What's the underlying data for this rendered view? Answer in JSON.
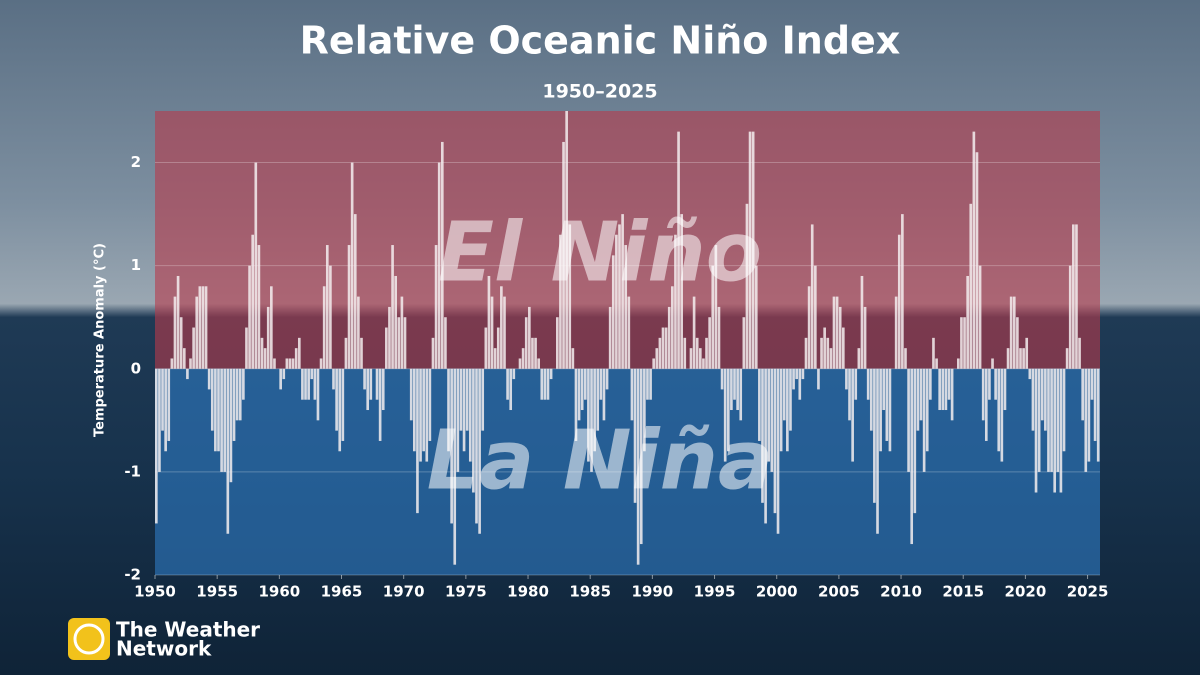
{
  "chart_data": {
    "type": "bar",
    "title": "Relative Oceanic Niño Index",
    "subtitle": "1950–2025",
    "y_label": "Temperature Anomaly (°C)",
    "annotations": [
      "El Niño",
      "La Niña"
    ],
    "color": "#f4eef0",
    "positive_region_color": "#b83a4b",
    "negative_region_color": "#2f7cc4",
    "grid": true,
    "xlim": [
      1950,
      2026
    ],
    "xticks": [
      1950,
      1955,
      1960,
      1965,
      1970,
      1975,
      1980,
      1985,
      1990,
      1995,
      2000,
      2005,
      2010,
      2015,
      2020,
      2025
    ],
    "ylim": [
      -2,
      2.5
    ],
    "yticks": [
      -2,
      -1,
      0,
      1,
      2
    ],
    "x": [
      1950,
      1950.25,
      1950.5,
      1950.75,
      1951,
      1951.25,
      1951.5,
      1951.75,
      1952,
      1952.25,
      1952.5,
      1952.75,
      1953,
      1953.25,
      1953.5,
      1953.75,
      1954,
      1954.25,
      1954.5,
      1954.75,
      1955,
      1955.25,
      1955.5,
      1955.75,
      1956,
      1956.25,
      1956.5,
      1956.75,
      1957,
      1957.25,
      1957.5,
      1957.75,
      1958,
      1958.25,
      1958.5,
      1958.75,
      1959,
      1959.25,
      1959.5,
      1959.75,
      1960,
      1960.25,
      1960.5,
      1960.75,
      1961,
      1961.25,
      1961.5,
      1961.75,
      1962,
      1962.25,
      1962.5,
      1962.75,
      1963,
      1963.25,
      1963.5,
      1963.75,
      1964,
      1964.25,
      1964.5,
      1964.75,
      1965,
      1965.25,
      1965.5,
      1965.75,
      1966,
      1966.25,
      1966.5,
      1966.75,
      1967,
      1967.25,
      1967.5,
      1967.75,
      1968,
      1968.25,
      1968.5,
      1968.75,
      1969,
      1969.25,
      1969.5,
      1969.75,
      1970,
      1970.25,
      1970.5,
      1970.75,
      1971,
      1971.25,
      1971.5,
      1971.75,
      1972,
      1972.25,
      1972.5,
      1972.75,
      1973,
      1973.25,
      1973.5,
      1973.75,
      1974,
      1974.25,
      1974.5,
      1974.75,
      1975,
      1975.25,
      1975.5,
      1975.75,
      1976,
      1976.25,
      1976.5,
      1976.75,
      1977,
      1977.25,
      1977.5,
      1977.75,
      1978,
      1978.25,
      1978.5,
      1978.75,
      1979,
      1979.25,
      1979.5,
      1979.75,
      1980,
      1980.25,
      1980.5,
      1980.75,
      1981,
      1981.25,
      1981.5,
      1981.75,
      1982,
      1982.25,
      1982.5,
      1982.75,
      1983,
      1983.25,
      1983.5,
      1983.75,
      1984,
      1984.25,
      1984.5,
      1984.75,
      1985,
      1985.25,
      1985.5,
      1985.75,
      1986,
      1986.25,
      1986.5,
      1986.75,
      1987,
      1987.25,
      1987.5,
      1987.75,
      1988,
      1988.25,
      1988.5,
      1988.75,
      1989,
      1989.25,
      1989.5,
      1989.75,
      1990,
      1990.25,
      1990.5,
      1990.75,
      1991,
      1991.25,
      1991.5,
      1991.75,
      1992,
      1992.25,
      1992.5,
      1992.75,
      1993,
      1993.25,
      1993.5,
      1993.75,
      1994,
      1994.25,
      1994.5,
      1994.75,
      1995,
      1995.25,
      1995.5,
      1995.75,
      1996,
      1996.25,
      1996.5,
      1996.75,
      1997,
      1997.25,
      1997.5,
      1997.75,
      1998,
      1998.25,
      1998.5,
      1998.75,
      1999,
      1999.25,
      1999.5,
      1999.75,
      2000,
      2000.25,
      2000.5,
      2000.75,
      2001,
      2001.25,
      2001.5,
      2001.75,
      2002,
      2002.25,
      2002.5,
      2002.75,
      2003,
      2003.25,
      2003.5,
      2003.75,
      2004,
      2004.25,
      2004.5,
      2004.75,
      2005,
      2005.25,
      2005.5,
      2005.75,
      2006,
      2006.25,
      2006.5,
      2006.75,
      2007,
      2007.25,
      2007.5,
      2007.75,
      2008,
      2008.25,
      2008.5,
      2008.75,
      2009,
      2009.25,
      2009.5,
      2009.75,
      2010,
      2010.25,
      2010.5,
      2010.75,
      2011,
      2011.25,
      2011.5,
      2011.75,
      2012,
      2012.25,
      2012.5,
      2012.75,
      2013,
      2013.25,
      2013.5,
      2013.75,
      2014,
      2014.25,
      2014.5,
      2014.75,
      2015,
      2015.25,
      2015.5,
      2015.75,
      2016,
      2016.25,
      2016.5,
      2016.75,
      2017,
      2017.25,
      2017.5,
      2017.75,
      2018,
      2018.25,
      2018.5,
      2018.75,
      2019,
      2019.25,
      2019.5,
      2019.75,
      2020,
      2020.25,
      2020.5,
      2020.75,
      2021,
      2021.25,
      2021.5,
      2021.75,
      2022,
      2022.25,
      2022.5,
      2022.75,
      2023,
      2023.25,
      2023.5,
      2023.75,
      2024,
      2024.25,
      2024.5,
      2024.75,
      2025,
      2025.25,
      2025.5,
      2025.75
    ],
    "values": [
      -1.5,
      -1.0,
      -0.6,
      -0.8,
      -0.7,
      0.1,
      0.7,
      0.9,
      0.5,
      0.2,
      -0.1,
      0.1,
      0.4,
      0.7,
      0.8,
      0.8,
      0.8,
      -0.2,
      -0.6,
      -0.8,
      -0.8,
      -1.0,
      -1.0,
      -1.6,
      -1.1,
      -0.7,
      -0.5,
      -0.5,
      -0.3,
      0.4,
      1.0,
      1.3,
      2.0,
      1.2,
      0.3,
      0.2,
      0.6,
      0.8,
      0.1,
      0.0,
      -0.2,
      -0.1,
      0.1,
      0.1,
      0.1,
      0.2,
      0.3,
      -0.3,
      -0.3,
      -0.3,
      -0.1,
      -0.3,
      -0.5,
      0.1,
      0.8,
      1.2,
      1.0,
      -0.2,
      -0.6,
      -0.8,
      -0.7,
      0.3,
      1.2,
      2.0,
      1.5,
      0.7,
      0.3,
      -0.2,
      -0.4,
      -0.3,
      0.0,
      -0.3,
      -0.7,
      -0.4,
      0.4,
      0.6,
      1.2,
      0.9,
      0.5,
      0.7,
      0.5,
      0.0,
      -0.5,
      -0.8,
      -1.4,
      -0.9,
      -0.8,
      -0.9,
      -0.7,
      0.3,
      1.2,
      2.0,
      2.2,
      0.5,
      -0.8,
      -1.5,
      -1.9,
      -1.0,
      -0.6,
      -0.8,
      -0.6,
      -0.9,
      -1.2,
      -1.5,
      -1.6,
      -0.6,
      0.4,
      0.9,
      0.7,
      0.2,
      0.4,
      0.8,
      0.7,
      -0.3,
      -0.4,
      -0.1,
      0.0,
      0.1,
      0.2,
      0.5,
      0.6,
      0.3,
      0.3,
      0.1,
      -0.3,
      -0.3,
      -0.3,
      -0.1,
      0.0,
      0.5,
      1.3,
      2.2,
      2.5,
      1.4,
      0.2,
      -0.7,
      -0.5,
      -0.4,
      -0.3,
      -0.9,
      -1.0,
      -0.8,
      -0.6,
      -0.3,
      -0.5,
      -0.2,
      0.6,
      1.1,
      1.3,
      1.4,
      1.5,
      1.2,
      0.7,
      -0.5,
      -1.3,
      -1.9,
      -1.7,
      -0.8,
      -0.3,
      -0.3,
      0.1,
      0.2,
      0.3,
      0.4,
      0.4,
      0.6,
      0.8,
      1.3,
      2.3,
      1.5,
      0.3,
      0.0,
      0.2,
      0.7,
      0.3,
      0.2,
      0.1,
      0.3,
      0.5,
      1.0,
      1.2,
      0.6,
      -0.2,
      -0.9,
      -0.8,
      -0.4,
      -0.3,
      -0.4,
      -0.5,
      0.5,
      1.6,
      2.3,
      2.3,
      1.0,
      -0.7,
      -1.3,
      -1.5,
      -0.9,
      -1.0,
      -1.4,
      -1.6,
      -0.8,
      -0.5,
      -0.8,
      -0.6,
      -0.2,
      -0.1,
      -0.3,
      -0.1,
      0.3,
      0.8,
      1.4,
      1.0,
      -0.2,
      0.3,
      0.4,
      0.3,
      0.2,
      0.7,
      0.7,
      0.6,
      0.4,
      -0.2,
      -0.5,
      -0.9,
      -0.3,
      0.2,
      0.9,
      0.6,
      -0.3,
      -0.6,
      -1.3,
      -1.6,
      -0.8,
      -0.4,
      -0.7,
      -0.8,
      0.0,
      0.7,
      1.3,
      1.5,
      0.2,
      -1.0,
      -1.7,
      -1.4,
      -0.6,
      -0.5,
      -1.0,
      -0.8,
      -0.3,
      0.3,
      0.1,
      -0.4,
      -0.4,
      -0.4,
      -0.3,
      -0.5,
      0.0,
      0.1,
      0.5,
      0.5,
      0.9,
      1.6,
      2.3,
      2.1,
      1.0,
      -0.5,
      -0.7,
      -0.3,
      0.1,
      -0.3,
      -0.8,
      -0.9,
      -0.4,
      0.2,
      0.7,
      0.7,
      0.5,
      0.2,
      0.2,
      0.3,
      -0.1,
      -0.6,
      -1.2,
      -1.0,
      -0.5,
      -0.6,
      -1.0,
      -1.0,
      -1.2,
      -1.0,
      -1.2,
      -0.8,
      0.2,
      1.0,
      1.4,
      1.4,
      0.3,
      -0.5,
      -1.0,
      -0.9,
      -0.3,
      -0.7,
      -0.9
    ]
  },
  "logo": {
    "line1": "The Weather",
    "line2": "Network"
  }
}
